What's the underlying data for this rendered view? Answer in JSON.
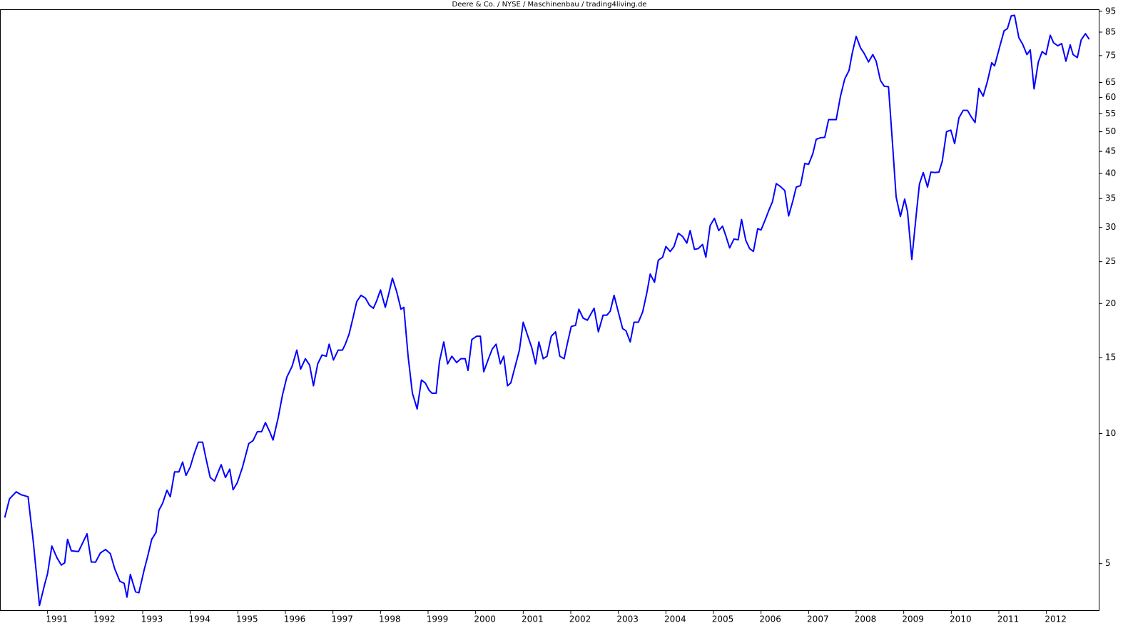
{
  "chart_data": {
    "type": "line",
    "title": "Deere & Co. / NYSE / Maschinenbau / trading4living.de",
    "log_scale": true,
    "color": "#0000ff",
    "grid": false,
    "xlim": [
      1990,
      2013.1
    ],
    "ylim": [
      3.9,
      96
    ],
    "xticks": [
      1991,
      1992,
      1993,
      1994,
      1995,
      1996,
      1997,
      1998,
      1999,
      2000,
      2001,
      2002,
      2003,
      2004,
      2005,
      2006,
      2007,
      2008,
      2009,
      2010,
      2011,
      2012
    ],
    "yticks": [
      5,
      10,
      15,
      20,
      25,
      30,
      35,
      40,
      45,
      50,
      55,
      60,
      65,
      75,
      85,
      95
    ],
    "x": [
      1990.1,
      1990.2,
      1990.34,
      1990.44,
      1990.59,
      1990.7,
      1990.83,
      1990.94,
      1991.0,
      1991.09,
      1991.2,
      1991.29,
      1991.36,
      1991.42,
      1991.5,
      1991.65,
      1991.83,
      1991.92,
      1992.01,
      1992.11,
      1992.22,
      1992.32,
      1992.41,
      1992.52,
      1992.61,
      1992.67,
      1992.74,
      1992.85,
      1992.92,
      1993.03,
      1993.1,
      1993.19,
      1993.28,
      1993.34,
      1993.42,
      1993.51,
      1993.58,
      1993.67,
      1993.76,
      1993.84,
      1993.91,
      1994.0,
      1994.08,
      1994.17,
      1994.26,
      1994.33,
      1994.42,
      1994.51,
      1994.65,
      1994.74,
      1994.83,
      1994.9,
      1994.99,
      1995.1,
      1995.23,
      1995.32,
      1995.41,
      1995.5,
      1995.58,
      1995.67,
      1995.74,
      1995.85,
      1995.94,
      1996.03,
      1996.14,
      1996.24,
      1996.32,
      1996.42,
      1996.51,
      1996.59,
      1996.68,
      1996.77,
      1996.86,
      1996.92,
      1997.01,
      1997.11,
      1997.2,
      1997.26,
      1997.34,
      1997.43,
      1997.5,
      1997.59,
      1997.68,
      1997.77,
      1997.85,
      1997.92,
      1998.0,
      1998.1,
      1998.17,
      1998.25,
      1998.34,
      1998.43,
      1998.49,
      1998.58,
      1998.67,
      1998.77,
      1998.86,
      1998.94,
      1999.02,
      1999.08,
      1999.17,
      1999.24,
      1999.33,
      1999.41,
      1999.5,
      1999.6,
      1999.69,
      1999.78,
      1999.84,
      1999.92,
      2000.02,
      2000.1,
      2000.17,
      2000.26,
      2000.35,
      2000.43,
      2000.52,
      2000.59,
      2000.67,
      2000.74,
      2000.83,
      2000.92,
      2001.0,
      2001.09,
      2001.18,
      2001.26,
      2001.33,
      2001.42,
      2001.5,
      2001.59,
      2001.68,
      2001.77,
      2001.86,
      2001.93,
      2002.01,
      2002.1,
      2002.17,
      2002.26,
      2002.35,
      2002.49,
      2002.58,
      2002.68,
      2002.76,
      2002.83,
      2002.91,
      2003.0,
      2003.09,
      2003.16,
      2003.25,
      2003.33,
      2003.42,
      2003.51,
      2003.6,
      2003.67,
      2003.76,
      2003.84,
      2003.93,
      2004.0,
      2004.09,
      2004.17,
      2004.26,
      2004.35,
      2004.44,
      2004.51,
      2004.6,
      2004.68,
      2004.77,
      2004.84,
      2004.93,
      2005.02,
      2005.11,
      2005.19,
      2005.26,
      2005.34,
      2005.43,
      2005.52,
      2005.59,
      2005.68,
      2005.76,
      2005.84,
      2005.93,
      2006.0,
      2006.09,
      2006.17,
      2006.24,
      2006.32,
      2006.41,
      2006.5,
      2006.58,
      2006.67,
      2006.74,
      2006.83,
      2006.92,
      2007.0,
      2007.09,
      2007.16,
      2007.25,
      2007.34,
      2007.42,
      2007.5,
      2007.58,
      2007.67,
      2007.76,
      2007.85,
      2007.92,
      2008.0,
      2008.09,
      2008.17,
      2008.26,
      2008.35,
      2008.42,
      2008.51,
      2008.59,
      2008.68,
      2008.77,
      2008.84,
      2008.93,
      2009.02,
      2009.08,
      2009.17,
      2009.26,
      2009.33,
      2009.41,
      2009.5,
      2009.57,
      2009.66,
      2009.74,
      2009.81,
      2009.9,
      2009.99,
      2010.07,
      2010.16,
      2010.25,
      2010.34,
      2010.41,
      2010.5,
      2010.58,
      2010.67,
      2010.76,
      2010.85,
      2010.91,
      2011.02,
      2011.11,
      2011.18,
      2011.26,
      2011.33,
      2011.42,
      2011.5,
      2011.59,
      2011.66,
      2011.74,
      2011.83,
      2011.91,
      2011.99,
      2012.08,
      2012.15,
      2012.24,
      2012.32,
      2012.41,
      2012.5,
      2012.56,
      2012.65,
      2012.73,
      2012.82,
      2012.9
    ],
    "values": [
      6.39,
      7.06,
      7.33,
      7.22,
      7.14,
      5.62,
      4.0,
      4.48,
      4.74,
      5.49,
      5.15,
      4.96,
      5.02,
      5.69,
      5.35,
      5.33,
      5.86,
      5.04,
      5.04,
      5.29,
      5.39,
      5.27,
      4.87,
      4.55,
      4.5,
      4.18,
      4.72,
      4.3,
      4.28,
      4.83,
      5.17,
      5.69,
      5.9,
      6.64,
      6.9,
      7.39,
      7.14,
      8.15,
      8.15,
      8.59,
      8.0,
      8.37,
      8.96,
      9.55,
      9.55,
      8.76,
      7.91,
      7.76,
      8.47,
      7.91,
      8.27,
      7.41,
      7.7,
      8.37,
      9.48,
      9.63,
      10.1,
      10.1,
      10.6,
      10.1,
      9.66,
      10.9,
      12.3,
      13.5,
      14.3,
      15.6,
      14.1,
      14.9,
      14.4,
      12.9,
      14.5,
      15.2,
      15.1,
      16.1,
      14.8,
      15.6,
      15.6,
      16.1,
      17.0,
      18.7,
      20.2,
      20.9,
      20.6,
      19.8,
      19.5,
      20.3,
      21.5,
      19.6,
      21.0,
      22.9,
      21.3,
      19.4,
      19.6,
      15.1,
      12.4,
      11.4,
      13.3,
      13.1,
      12.6,
      12.4,
      12.4,
      14.7,
      16.3,
      14.5,
      15.1,
      14.6,
      14.9,
      14.9,
      14.0,
      16.5,
      16.8,
      16.8,
      13.9,
      14.8,
      15.7,
      16.1,
      14.5,
      15.1,
      12.9,
      13.1,
      14.3,
      15.6,
      18.1,
      16.9,
      15.8,
      14.5,
      16.3,
      14.9,
      15.1,
      16.8,
      17.2,
      15.1,
      14.9,
      16.2,
      17.7,
      17.8,
      19.4,
      18.5,
      18.3,
      19.5,
      17.2,
      18.8,
      18.8,
      19.2,
      20.9,
      19.1,
      17.5,
      17.3,
      16.3,
      18.1,
      18.1,
      19.1,
      21.2,
      23.4,
      22.4,
      25.2,
      25.6,
      27.1,
      26.4,
      27.1,
      29.1,
      28.6,
      27.6,
      29.5,
      26.7,
      26.8,
      27.4,
      25.6,
      30.3,
      31.5,
      29.5,
      30.2,
      28.7,
      26.9,
      28.2,
      28.1,
      31.3,
      28.0,
      26.8,
      26.4,
      29.8,
      29.6,
      31.3,
      33.0,
      34.4,
      37.9,
      37.3,
      36.5,
      31.9,
      34.6,
      37.2,
      37.5,
      42.2,
      42.0,
      44.5,
      48.0,
      48.4,
      48.5,
      53.3,
      53.3,
      53.3,
      60.4,
      66.2,
      69.3,
      76.2,
      83.1,
      78.2,
      75.8,
      72.5,
      75.4,
      72.8,
      65.7,
      63.7,
      63.5,
      45.9,
      35.3,
      31.8,
      34.9,
      32.6,
      25.3,
      31.9,
      37.8,
      40.2,
      37.2,
      40.3,
      40.2,
      40.3,
      42.7,
      50.0,
      50.4,
      46.9,
      53.8,
      56.0,
      56.0,
      54.3,
      52.5,
      63.0,
      60.4,
      65.4,
      72.2,
      71.0,
      78.8,
      85.6,
      86.6,
      92.7,
      93.0,
      82.5,
      79.7,
      75.4,
      77.3,
      62.8,
      72.5,
      76.6,
      75.4,
      83.6,
      80.3,
      79.0,
      80.0,
      72.8,
      79.4,
      75.4,
      74.2,
      81.5,
      84.3,
      81.8
    ]
  }
}
